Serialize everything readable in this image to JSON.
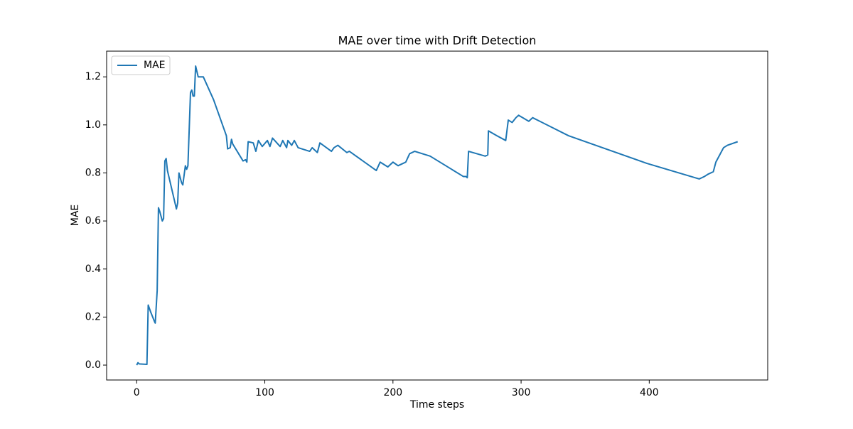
{
  "chart_data": {
    "type": "line",
    "title": "MAE over time with Drift Detection",
    "xlabel": "Time steps",
    "ylabel": "MAE",
    "legend": "upper left",
    "xlim": [
      -23.45,
      492.45
    ],
    "xticks": [
      0,
      100,
      200,
      300,
      400
    ],
    "ylim": [
      -0.062,
      1.307
    ],
    "yticks": [
      {
        "value": 0,
        "label": "0.0"
      },
      0.2,
      0.4,
      0.6,
      0.8,
      {
        "value": 1,
        "label": "1.0"
      },
      1.2
    ],
    "x": [
      0,
      1,
      2,
      8,
      9,
      11,
      14,
      14.5,
      16,
      17,
      18,
      20,
      21,
      22,
      23,
      24,
      31,
      32,
      33,
      35,
      36,
      38,
      39,
      40,
      42,
      43,
      44,
      45,
      46,
      48,
      52,
      60,
      70,
      71,
      73,
      74,
      75,
      83,
      85,
      86,
      87,
      91,
      93,
      95,
      98,
      102,
      104,
      106,
      112,
      114,
      117,
      118,
      121,
      123,
      126,
      135,
      137,
      141,
      143,
      152,
      154,
      157,
      164,
      166,
      187,
      190,
      196,
      200,
      204,
      208,
      210,
      213,
      217,
      229,
      255,
      257,
      258,
      259,
      272,
      274,
      274.5,
      281,
      288,
      290,
      293,
      296,
      298,
      306,
      309,
      337,
      398,
      439,
      441,
      443,
      446,
      450,
      452,
      458,
      461,
      469
    ],
    "series": [
      {
        "name": "MAE",
        "color": "#1f77b4",
        "values": [
          0,
          0.01,
          0.005,
          0.003,
          0.25,
          0.22,
          0.18,
          0.175,
          0.31,
          0.655,
          0.64,
          0.6,
          0.61,
          0.85,
          0.86,
          0.81,
          0.65,
          0.675,
          0.8,
          0.76,
          0.75,
          0.83,
          0.815,
          0.83,
          1.135,
          1.145,
          1.12,
          1.12,
          1.245,
          1.2,
          1.2,
          1.105,
          0.955,
          0.9,
          0.905,
          0.94,
          0.92,
          0.85,
          0.855,
          0.845,
          0.93,
          0.925,
          0.89,
          0.935,
          0.91,
          0.935,
          0.91,
          0.945,
          0.91,
          0.935,
          0.905,
          0.935,
          0.915,
          0.935,
          0.905,
          0.89,
          0.905,
          0.885,
          0.925,
          0.89,
          0.905,
          0.915,
          0.885,
          0.89,
          0.81,
          0.845,
          0.825,
          0.845,
          0.83,
          0.84,
          0.845,
          0.88,
          0.89,
          0.87,
          0.785,
          0.785,
          0.78,
          0.89,
          0.87,
          0.875,
          0.975,
          0.955,
          0.935,
          1.02,
          1.01,
          1.03,
          1.04,
          1.015,
          1.03,
          0.955,
          0.84,
          0.775,
          0.78,
          0.785,
          0.795,
          0.805,
          0.845,
          0.905,
          0.915,
          0.93
        ]
      }
    ]
  }
}
